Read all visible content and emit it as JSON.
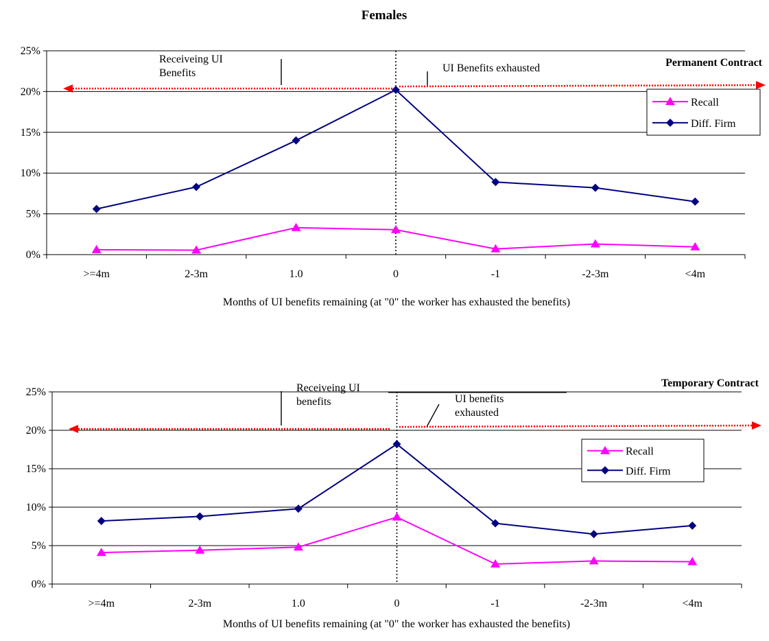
{
  "figure": {
    "title": "Females"
  },
  "chart_data": [
    {
      "type": "line",
      "title": "Permanent Contract",
      "categories": [
        ">=4m",
        "2-3m",
        "1.0",
        "0",
        "-1",
        "-2-3m",
        "<4m"
      ],
      "series": [
        {
          "name": "Recall",
          "values": [
            0.6,
            0.55,
            3.3,
            3.05,
            0.7,
            1.3,
            0.95
          ]
        },
        {
          "name": "Diff. Firm",
          "values": [
            5.6,
            8.3,
            14.0,
            20.2,
            8.9,
            8.2,
            6.5
          ]
        }
      ],
      "xlabel": "Months of UI benefits remaining (at \"0\" the worker has exhausted the benefits)",
      "ylabel": "",
      "ylim": [
        0,
        25
      ],
      "yticks": [
        "0%",
        "5%",
        "10%",
        "15%",
        "20%",
        "25%"
      ],
      "grid": true,
      "legend": "right",
      "annotations": {
        "left": "Receiveing UI Benefits",
        "right": "UI Benefits exhausted"
      },
      "colors": {
        "Recall": "#ff00ff",
        "Diff. Firm": "#000080",
        "arrow": "#ff0000"
      }
    },
    {
      "type": "line",
      "title": "Temporary Contract",
      "categories": [
        ">=4m",
        "2-3m",
        "1.0",
        "0",
        "-1",
        "-2-3m",
        "<4m"
      ],
      "series": [
        {
          "name": "Recall",
          "values": [
            4.1,
            4.4,
            4.8,
            8.7,
            2.6,
            3.0,
            2.9
          ]
        },
        {
          "name": "Diff. Firm",
          "values": [
            8.2,
            8.8,
            9.8,
            18.2,
            7.9,
            6.5,
            7.6
          ]
        }
      ],
      "xlabel": "Months of UI benefits remaining (at \"0\" the worker has exhausted the benefits)",
      "ylabel": "",
      "ylim": [
        0,
        25
      ],
      "yticks": [
        "0%",
        "5%",
        "10%",
        "15%",
        "20%",
        "25%"
      ],
      "grid": true,
      "legend": "right",
      "annotations": {
        "left": "Receiveing UI benefits",
        "right": "UI benefits exhausted"
      },
      "colors": {
        "Recall": "#ff00ff",
        "Diff. Firm": "#000080",
        "arrow": "#ff0000"
      }
    }
  ]
}
